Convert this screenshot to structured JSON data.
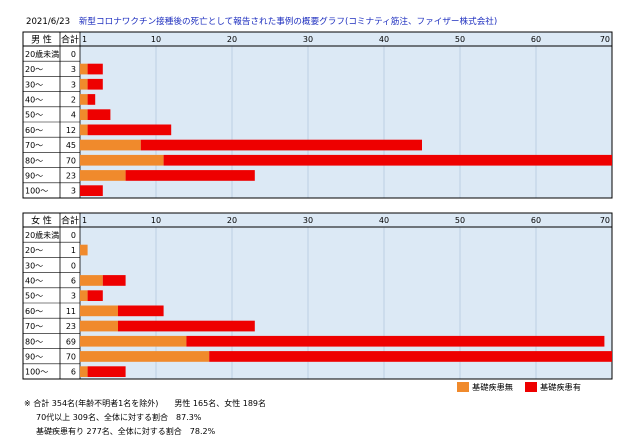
{
  "title": {
    "date": "2021/6/23",
    "text": "新型コロナワクチン接種後の死亡として報告された事例の概要グラフ(コミナティ筋注、ファイザー株式会社)"
  },
  "colors": {
    "without": "#f08a2c",
    "with": "#ee0000",
    "plot_bg": "#dce9f5"
  },
  "legend": {
    "without_label": "基礎疾患無",
    "with_label": "基礎疾患有"
  },
  "chart_data": [
    {
      "type": "bar",
      "orientation": "horizontal",
      "stacked": true,
      "sex_header": "男 性",
      "total_header": "合計",
      "x_ticks": [
        "1",
        "10",
        "20",
        "30",
        "40",
        "50",
        "60",
        "70"
      ],
      "xlim": [
        0,
        70
      ],
      "categories": [
        "20歳未満",
        "20～",
        "30～",
        "40～",
        "50～",
        "60～",
        "70～",
        "80～",
        "90～",
        "100～"
      ],
      "totals": [
        "0",
        "3",
        "3",
        "2",
        "4",
        "12",
        "45",
        "70",
        "23",
        "3"
      ],
      "series": [
        {
          "name": "基礎疾患無",
          "values": [
            0,
            1,
            1,
            1,
            1,
            1,
            8,
            11,
            6,
            0
          ]
        },
        {
          "name": "基礎疾患有",
          "values": [
            0,
            2,
            2,
            1,
            3,
            11,
            37,
            59,
            17,
            3
          ]
        }
      ]
    },
    {
      "type": "bar",
      "orientation": "horizontal",
      "stacked": true,
      "sex_header": "女 性",
      "total_header": "合計",
      "x_ticks": [
        "1",
        "10",
        "20",
        "30",
        "40",
        "50",
        "60",
        "70"
      ],
      "xlim": [
        0,
        70
      ],
      "categories": [
        "20歳未満",
        "20～",
        "30～",
        "40～",
        "50～",
        "60～",
        "70～",
        "80～",
        "90～",
        "100～"
      ],
      "totals": [
        "0",
        "1",
        "0",
        "6",
        "3",
        "11",
        "23",
        "69",
        "70",
        "6"
      ],
      "series": [
        {
          "name": "基礎疾患無",
          "values": [
            0,
            1,
            0,
            3,
            1,
            5,
            5,
            14,
            17,
            1
          ]
        },
        {
          "name": "基礎疾患有",
          "values": [
            0,
            0,
            0,
            3,
            2,
            6,
            18,
            55,
            53,
            5
          ]
        }
      ]
    }
  ],
  "footnotes": {
    "line1": "※ 合計 354名(年齢不明者1名を除外)　　男性 165名、女性 189名",
    "line2": "70代以上 309名、全体に対する割合　87.3%",
    "line3": "基礎疾患有り 277名、全体に対する割合　78.2%"
  }
}
